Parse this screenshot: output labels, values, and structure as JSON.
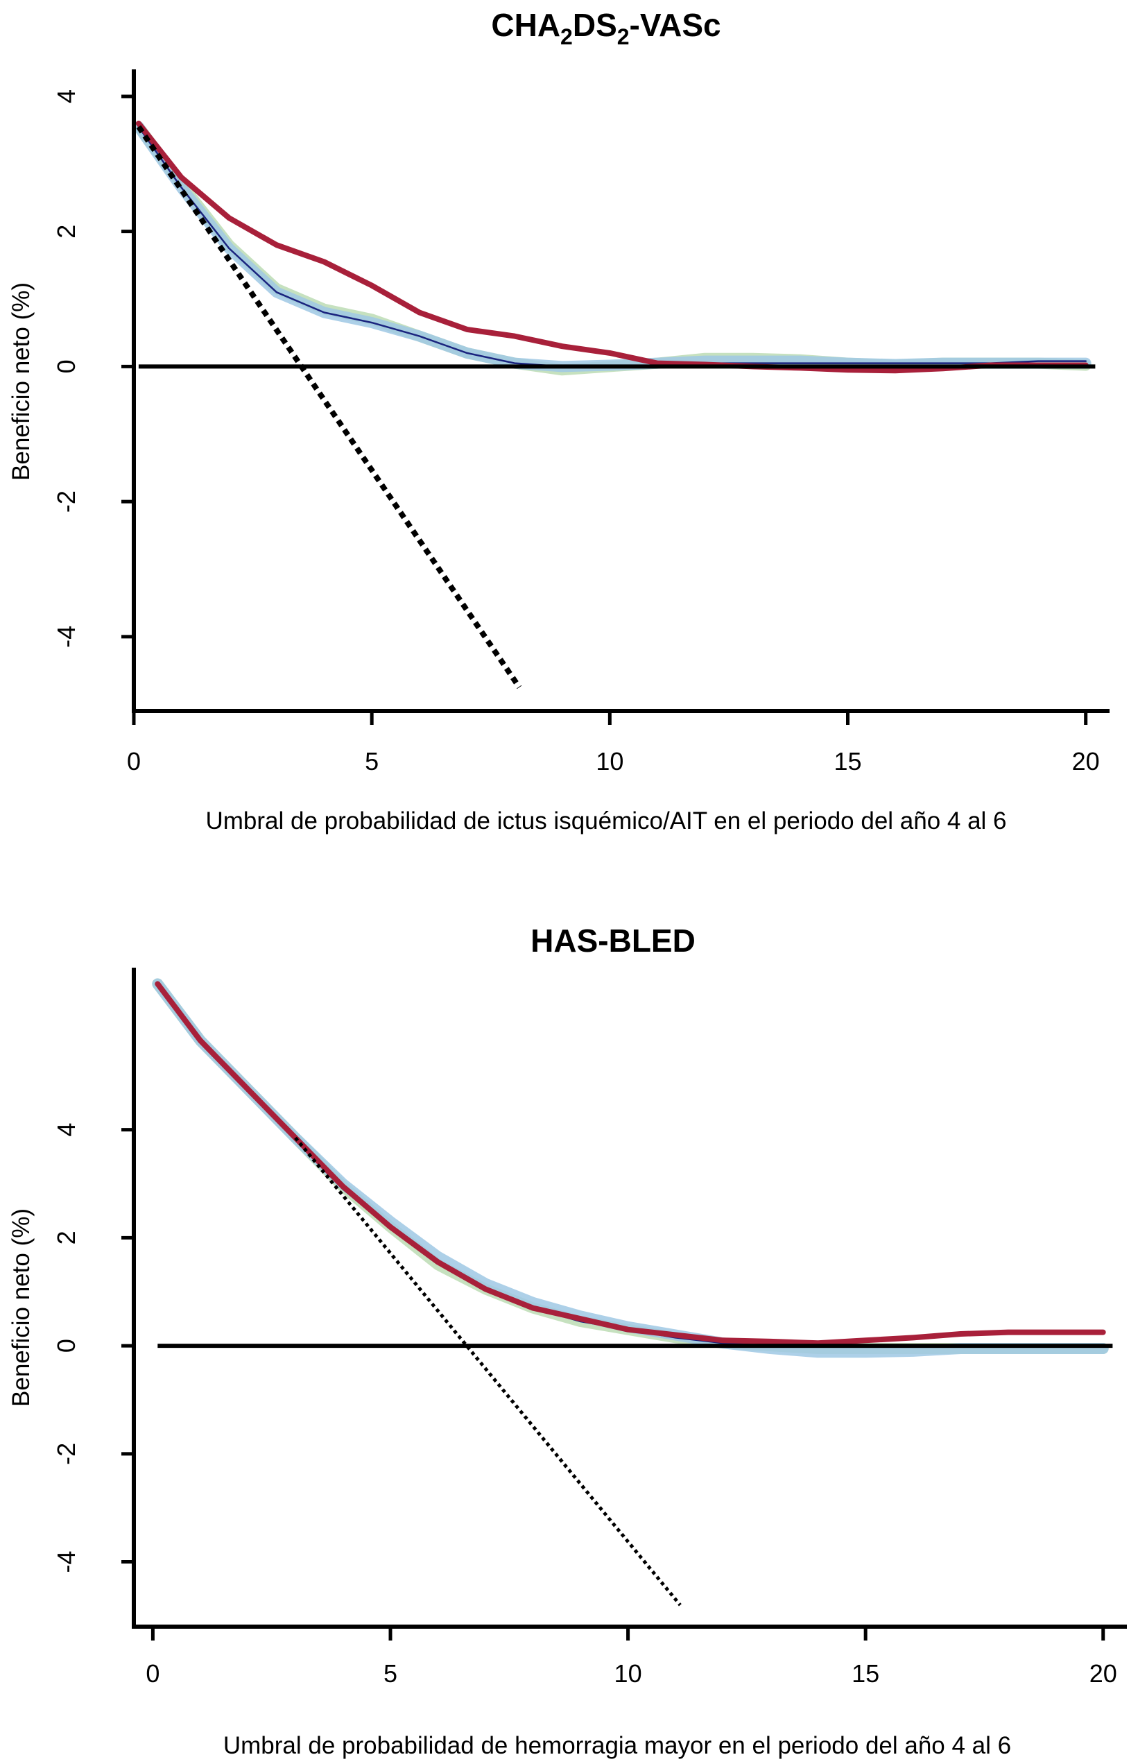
{
  "colors": {
    "red": "#a8203a",
    "lightblue": "#9fc8e4",
    "lightgreen": "#bcdcb4",
    "darkblue": "#1a237e",
    "black": "#000000"
  },
  "chart_data": [
    {
      "type": "line",
      "title_parts": [
        "CHA",
        "2",
        "DS",
        "2",
        "-VASc"
      ],
      "xlabel": "Umbral de probabilidad de ictus isquémico/AIT en el periodo del año 4 al 6",
      "ylabel": "Beneficio neto (%)",
      "xlim": [
        0,
        20.5
      ],
      "ylim": [
        -5.1,
        4.4
      ],
      "xticks": [
        0,
        5,
        10,
        15,
        20
      ],
      "yticks": [
        -4,
        -2,
        0,
        2,
        4
      ],
      "xtick_labels": [
        "0",
        "5",
        "10",
        "15",
        "20"
      ],
      "ytick_labels": [
        "-4",
        "-2",
        "0",
        "2",
        "4"
      ],
      "grid": false,
      "series": [
        {
          "style": "band",
          "color": "lightgreen",
          "x": [
            0.1,
            1,
            2,
            3,
            4,
            5,
            6,
            7,
            8,
            9,
            10,
            11,
            12,
            13,
            14,
            15,
            16,
            17,
            18,
            19,
            20
          ],
          "values": [
            3.55,
            2.7,
            1.8,
            1.15,
            0.85,
            0.7,
            0.45,
            0.2,
            0.05,
            -0.05,
            0.0,
            0.05,
            0.12,
            0.12,
            0.1,
            0.05,
            0.02,
            0.05,
            0.05,
            0.05,
            0.02
          ]
        },
        {
          "style": "band",
          "color": "lightblue",
          "x": [
            0.1,
            1,
            2,
            3,
            4,
            5,
            6,
            7,
            8,
            9,
            10,
            11,
            12,
            13,
            14,
            15,
            16,
            17,
            18,
            19,
            20
          ],
          "values": [
            3.55,
            2.65,
            1.75,
            1.1,
            0.8,
            0.65,
            0.45,
            0.2,
            0.05,
            0.0,
            0.02,
            0.05,
            0.08,
            0.08,
            0.08,
            0.05,
            0.03,
            0.05,
            0.05,
            0.05,
            0.05
          ]
        },
        {
          "style": "thin",
          "color": "darkblue",
          "x": [
            0.1,
            1,
            2,
            3,
            4,
            5,
            6,
            7,
            8,
            9,
            10,
            11,
            12,
            13,
            14,
            15,
            16,
            17,
            18,
            19,
            20
          ],
          "values": [
            3.55,
            2.65,
            1.75,
            1.1,
            0.8,
            0.65,
            0.45,
            0.2,
            0.05,
            0.0,
            0.0,
            0.0,
            0.05,
            0.05,
            0.05,
            0.05,
            0.05,
            0.05,
            0.05,
            0.08,
            0.08
          ]
        },
        {
          "style": "thick",
          "color": "red",
          "x": [
            0.1,
            1,
            2,
            3,
            4,
            5,
            6,
            7,
            8,
            9,
            10,
            11,
            12,
            13,
            14,
            15,
            16,
            17,
            18,
            19,
            20
          ],
          "values": [
            3.6,
            2.8,
            2.2,
            1.8,
            1.55,
            1.2,
            0.8,
            0.55,
            0.45,
            0.3,
            0.2,
            0.05,
            0.03,
            0.0,
            -0.02,
            -0.05,
            -0.06,
            -0.03,
            0.02,
            0.02,
            0.02
          ]
        },
        {
          "style": "dotted",
          "color": "black",
          "x": [
            0.1,
            8.1
          ],
          "values": [
            3.55,
            -4.75
          ]
        },
        {
          "style": "zero",
          "color": "black",
          "x": [
            0.1,
            20.2
          ],
          "values": [
            0,
            0
          ]
        }
      ]
    },
    {
      "type": "line",
      "title_parts": [
        "HAS-BLED"
      ],
      "xlabel": "Umbral de probabilidad de hemorragia mayor en el periodo del año 4 al 6",
      "ylabel": "Beneficio neto (%)",
      "xlim": [
        -0.4,
        20.5
      ],
      "ylim": [
        -5.2,
        7.0
      ],
      "xticks": [
        0,
        5,
        10,
        15,
        20
      ],
      "yticks": [
        -4,
        -2,
        0,
        2,
        4
      ],
      "xtick_labels": [
        "0",
        "5",
        "10",
        "15",
        "20"
      ],
      "ytick_labels": [
        "-4",
        "-2",
        "0",
        "2",
        "4"
      ],
      "grid": false,
      "series": [
        {
          "style": "band",
          "color": "lightgreen",
          "x": [
            0.1,
            1,
            2,
            3,
            4,
            5,
            6,
            7,
            8,
            9,
            10,
            11,
            12,
            13,
            14,
            15,
            16,
            17,
            18,
            19,
            20
          ],
          "values": [
            6.7,
            5.65,
            4.75,
            3.85,
            2.95,
            2.2,
            1.5,
            1.05,
            0.7,
            0.45,
            0.3,
            0.15,
            0.05,
            0.0,
            -0.05,
            -0.05,
            -0.05,
            -0.05,
            -0.05,
            -0.05,
            -0.05
          ]
        },
        {
          "style": "band",
          "color": "lightblue",
          "x": [
            0.1,
            1,
            2,
            3,
            4,
            5,
            6,
            7,
            8,
            9,
            10,
            11,
            12,
            13,
            14,
            15,
            16,
            17,
            18,
            19,
            20
          ],
          "values": [
            6.7,
            5.65,
            4.75,
            3.85,
            3.0,
            2.3,
            1.65,
            1.15,
            0.8,
            0.55,
            0.35,
            0.2,
            0.05,
            -0.05,
            -0.12,
            -0.12,
            -0.1,
            -0.05,
            -0.05,
            -0.05,
            -0.05
          ]
        },
        {
          "style": "thin",
          "color": "darkblue",
          "x": [
            0.1,
            1,
            2,
            3,
            4,
            5,
            6,
            7,
            8,
            9,
            10,
            11,
            12,
            13,
            14,
            15,
            16,
            17,
            18,
            19,
            20
          ],
          "values": [
            6.7,
            5.65,
            4.75,
            3.85,
            2.9,
            2.2,
            1.55,
            1.05,
            0.7,
            0.45,
            0.3,
            0.15,
            0.05,
            0.0,
            0.0,
            0.0,
            0.0,
            0.0,
            0.0,
            0.0,
            0.0
          ]
        },
        {
          "style": "thick",
          "color": "red",
          "x": [
            0.1,
            1,
            2,
            3,
            4,
            5,
            6,
            7,
            8,
            9,
            10,
            11,
            12,
            13,
            14,
            15,
            16,
            17,
            18,
            19,
            20
          ],
          "values": [
            6.7,
            5.65,
            4.75,
            3.85,
            2.95,
            2.2,
            1.55,
            1.05,
            0.7,
            0.5,
            0.3,
            0.2,
            0.1,
            0.08,
            0.05,
            0.1,
            0.15,
            0.22,
            0.25,
            0.25,
            0.25
          ]
        },
        {
          "style": "dotted",
          "color": "black",
          "x": [
            3.0,
            11.1
          ],
          "values": [
            3.85,
            -4.8
          ]
        },
        {
          "style": "zero",
          "color": "black",
          "x": [
            0.1,
            20.2
          ],
          "values": [
            0,
            0
          ]
        }
      ]
    }
  ]
}
